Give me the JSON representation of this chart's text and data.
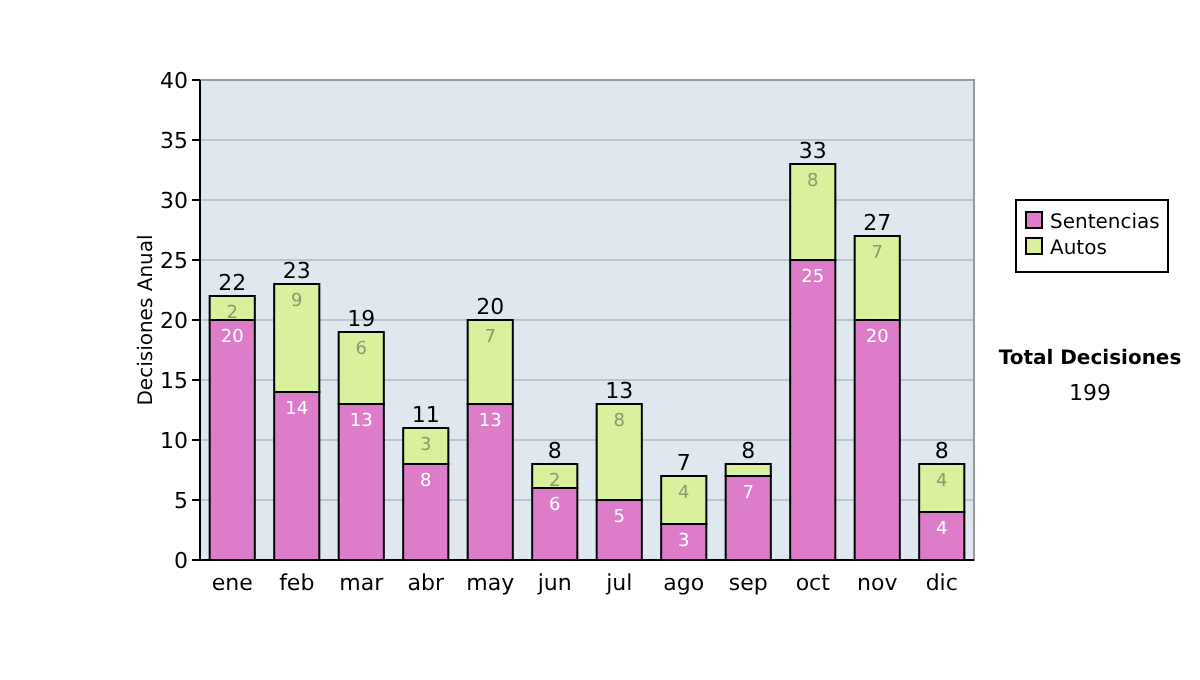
{
  "chart_data": {
    "type": "bar",
    "stacked": true,
    "ylabel": "Decisiones Anual",
    "categories": [
      "ene",
      "feb",
      "mar",
      "abr",
      "may",
      "jun",
      "jul",
      "ago",
      "sep",
      "oct",
      "nov",
      "dic"
    ],
    "series": [
      {
        "name": "Sentencias",
        "color": "#dd7cc8",
        "values": [
          20,
          14,
          13,
          8,
          13,
          6,
          5,
          3,
          7,
          25,
          20,
          4
        ],
        "value_labels": [
          "20",
          "14",
          "13",
          "8",
          "13",
          "6",
          "5",
          "3",
          "7",
          "25",
          "20",
          "4"
        ]
      },
      {
        "name": "Autos",
        "color": "#d9f09c",
        "values": [
          2,
          9,
          6,
          3,
          7,
          2,
          8,
          4,
          1,
          8,
          7,
          4
        ],
        "value_labels": [
          "2",
          "9",
          "6",
          "3",
          "7",
          "2",
          "8",
          "4",
          null,
          "8",
          "7",
          "4"
        ]
      }
    ],
    "totals": [
      "22",
      "23",
      "19",
      "11",
      "20",
      "8",
      "13",
      "7",
      "8",
      "33",
      "27",
      "8"
    ],
    "ylim": [
      0,
      40
    ],
    "yticks": [
      0,
      5,
      10,
      15,
      20,
      25,
      30,
      35,
      40
    ],
    "grid": "y",
    "legend": "right",
    "annotations": [
      "Total Decisiones",
      "199"
    ]
  }
}
